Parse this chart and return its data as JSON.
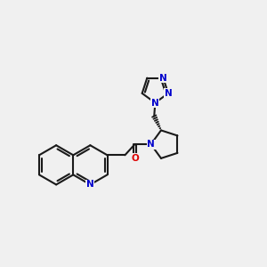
{
  "bg_color": "#f0f0f0",
  "bond_color": "#1a1a1a",
  "N_color": "#0000cc",
  "O_color": "#dd0000",
  "bond_lw": 1.5,
  "font_size": 7.5,
  "figsize": [
    3.0,
    3.0
  ],
  "dpi": 100,
  "bl": 0.75,
  "xlim": [
    0,
    10
  ],
  "ylim": [
    0,
    10
  ]
}
